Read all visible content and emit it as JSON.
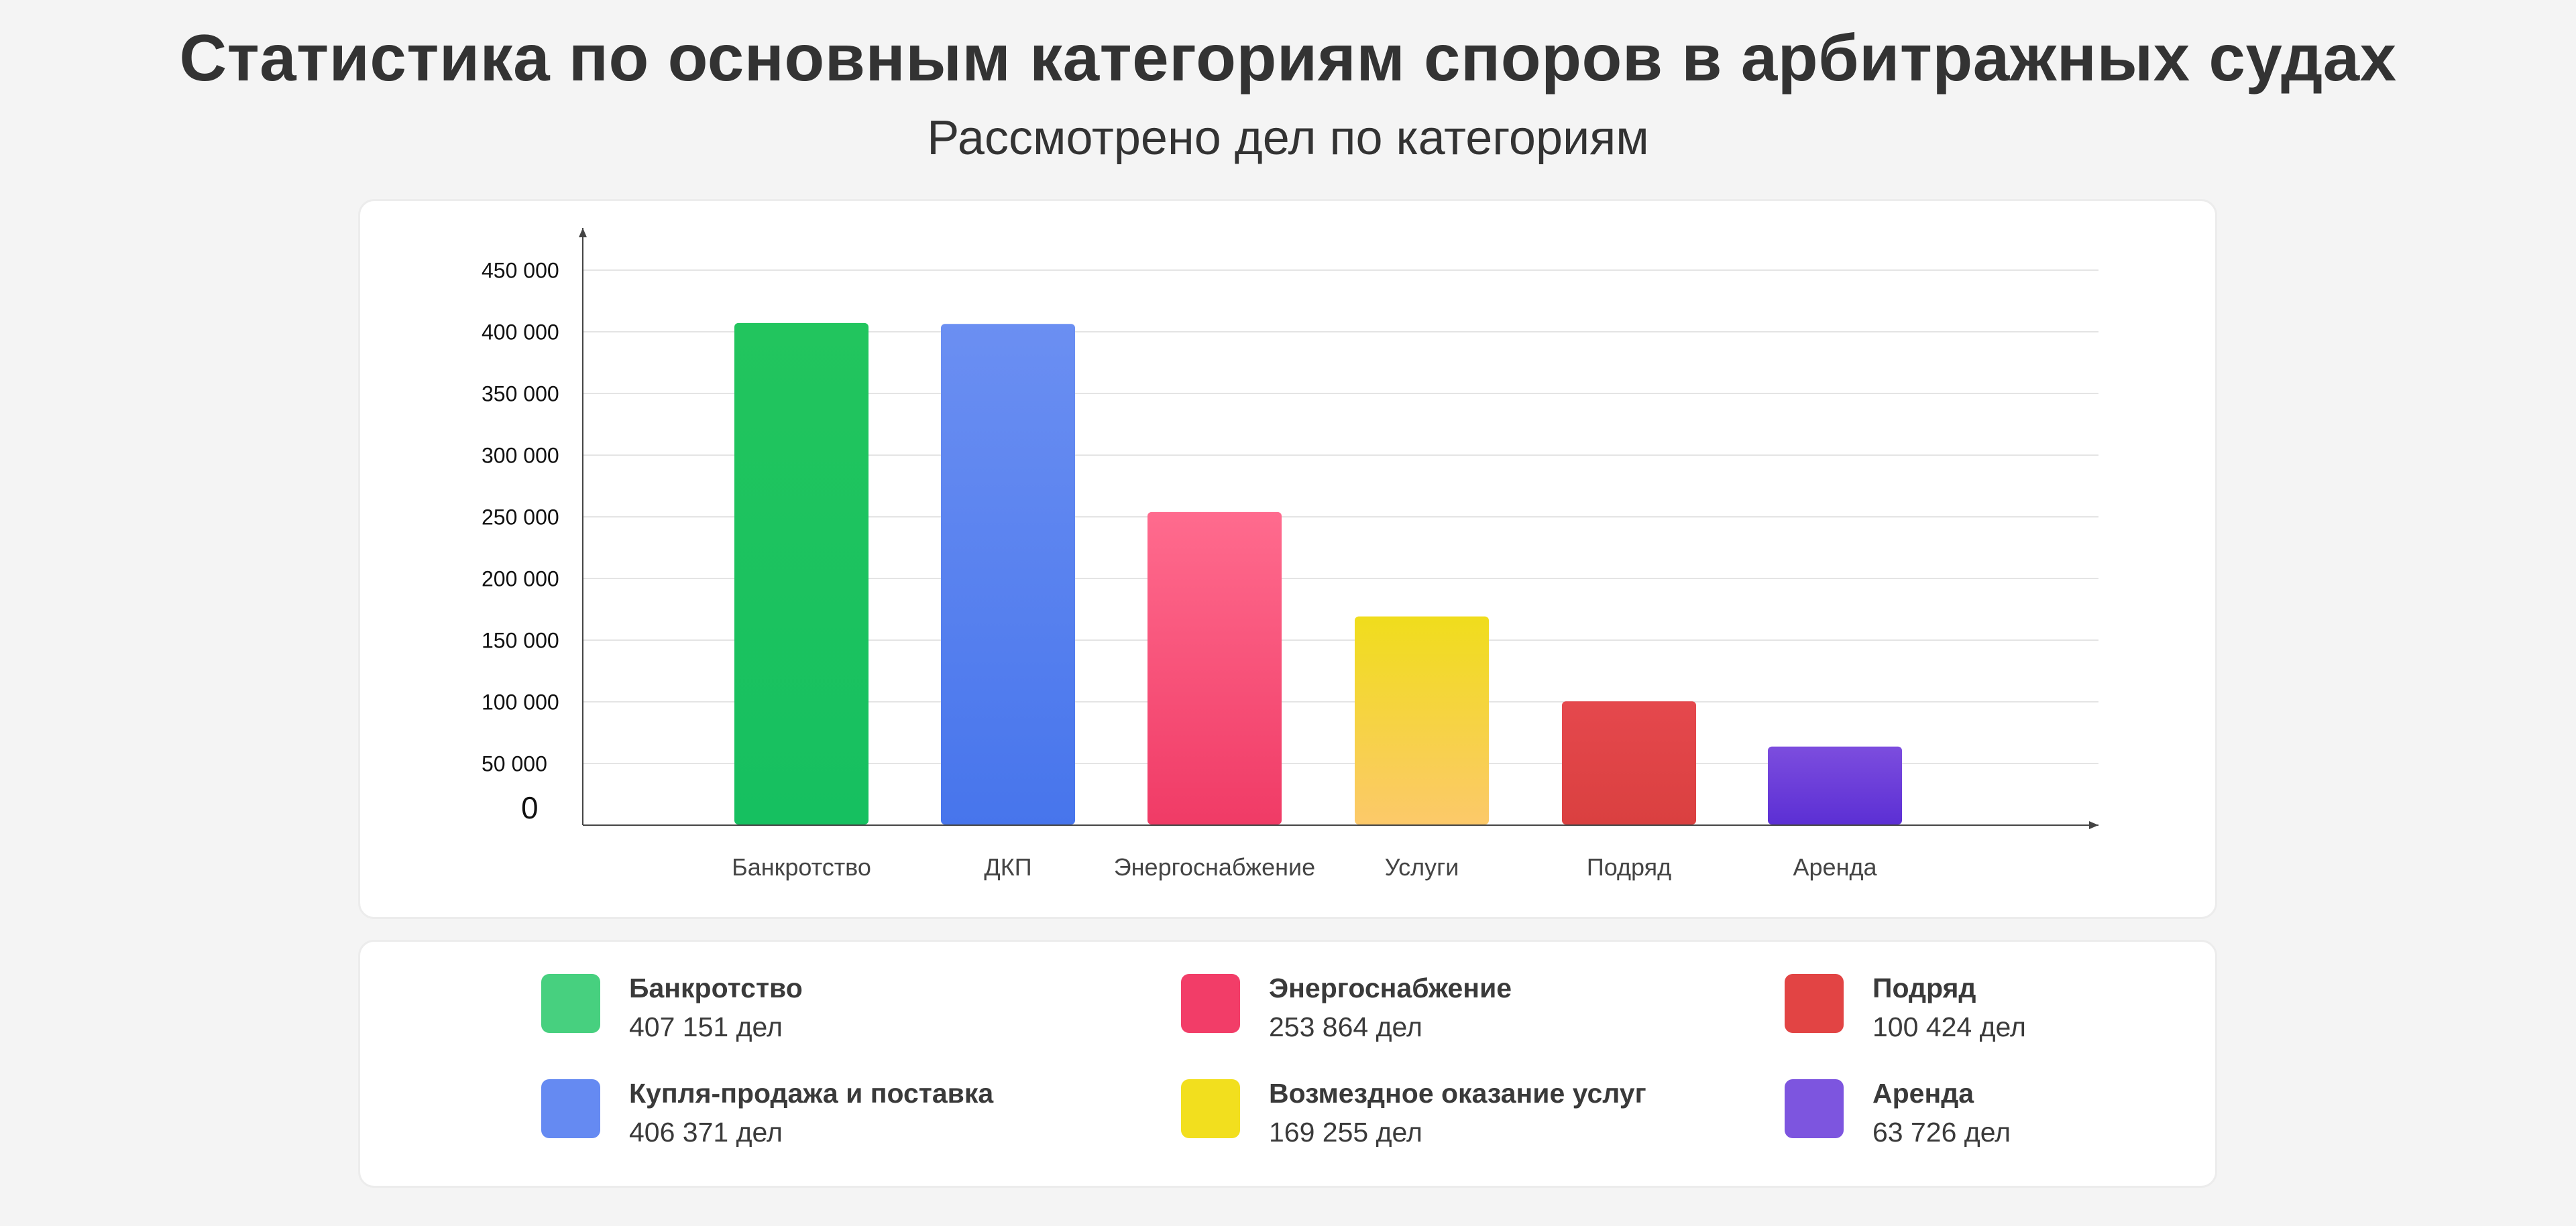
{
  "title": "Статистика по основным категориям споров в арбитражных судах",
  "subtitle": "Рассмотрено дел по категориям",
  "chart_data": {
    "type": "bar",
    "categories": [
      "Банкротство",
      "ДКП",
      "Энергоснабжение",
      "Услуги",
      "Подряд",
      "Аренда"
    ],
    "values": [
      407151,
      406371,
      253864,
      169255,
      100424,
      63726
    ],
    "yticks": [
      "0",
      "50 000",
      "100 000",
      "150 000",
      "200 000",
      "250 000",
      "300 000",
      "350 000",
      "400 000",
      "450 000"
    ],
    "ylim": [
      0,
      450000
    ],
    "xlabel": "",
    "ylabel": "",
    "grid": true,
    "colors": [
      [
        "#22c55e",
        "#16c060"
      ],
      [
        "#6b8ff2",
        "#4775ec"
      ],
      [
        "#ff6b8e",
        "#f03b66"
      ],
      [
        "#f0dd1c",
        "#fcc96a"
      ],
      [
        "#e5484d",
        "#da4040"
      ],
      [
        "#7c4dde",
        "#5c2fd4"
      ]
    ]
  },
  "legend": [
    {
      "name": "Банкротство",
      "value": "407 151 дел",
      "color": "#47d07f"
    },
    {
      "name": "Купля-продажа и поставка",
      "value": "406 371 дел",
      "color": "#658af2"
    },
    {
      "name": "Энергоснабжение",
      "value": "253 864 дел",
      "color": "#f23d68"
    },
    {
      "name": "Возмездное оказание услуг",
      "value": "169 255 дел",
      "color": "#f2df1e"
    },
    {
      "name": "Подряд",
      "value": "100 424 дел",
      "color": "#e24444"
    },
    {
      "name": "Аренда",
      "value": "63 726 дел",
      "color": "#7d55df"
    }
  ]
}
